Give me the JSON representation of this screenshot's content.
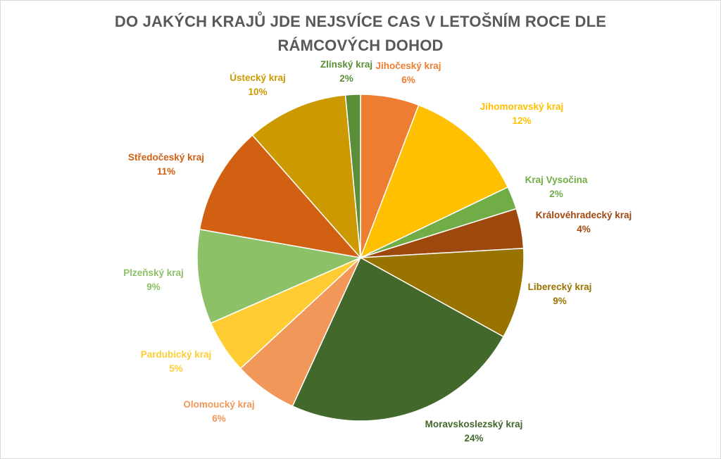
{
  "chart_data": {
    "type": "pie",
    "title_lines": [
      "DO JAKÝCH KRAJŮ JDE NEJSVÍCE CAS V LETOŠNÍM ROCE DLE",
      "RÁMCOVÝCH DOHOD"
    ],
    "legend": "none",
    "slices": [
      {
        "label": "Jihočeský kraj",
        "value_text": "6%",
        "value": 5.9,
        "color": "#ED7D31"
      },
      {
        "label": "Jihomoravský kraj",
        "value_text": "12%",
        "value": 12.3,
        "color": "#FFC000"
      },
      {
        "label": "Kraj Vysočina",
        "value_text": "2%",
        "value": 2.3,
        "color": "#70AD47"
      },
      {
        "label": "Královéhradecký kraj",
        "value_text": "4%",
        "value": 4.0,
        "color": "#9E480E"
      },
      {
        "label": "Liberecký kraj",
        "value_text": "9%",
        "value": 9.1,
        "color": "#997300"
      },
      {
        "label": "Moravskoslezský kraj",
        "value_text": "24%",
        "value": 24.2,
        "color": "#43682B"
      },
      {
        "label": "Olomoucký kraj",
        "value_text": "6%",
        "value": 6.4,
        "color": "#F1975A"
      },
      {
        "label": "Pardubický kraj",
        "value_text": "5%",
        "value": 5.4,
        "color": "#FFCD33"
      },
      {
        "label": "Plzeňský kraj",
        "value_text": "9%",
        "value": 9.5,
        "color": "#8CC168"
      },
      {
        "label": "Středočeský kraj",
        "value_text": "11%",
        "value": 10.9,
        "color": "#D26012"
      },
      {
        "label": "Ústecký kraj",
        "value_text": "10%",
        "value": 10.2,
        "color": "#CC9A00"
      },
      {
        "label": "Zlínský kraj",
        "value_text": "2%",
        "value": 1.5,
        "color": "#5A8E38"
      }
    ]
  }
}
